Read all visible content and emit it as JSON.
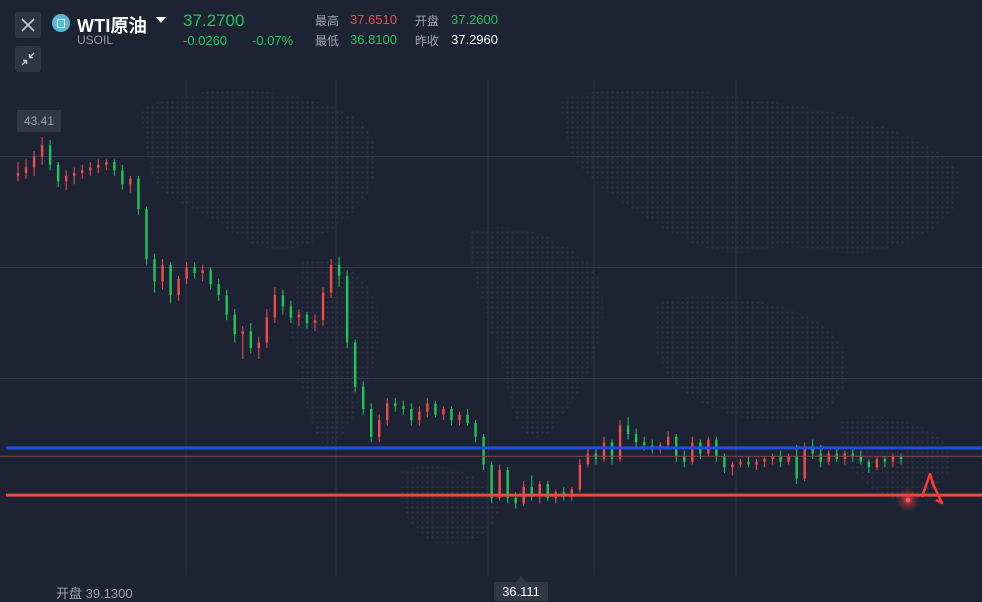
{
  "header": {
    "symbol_name": "WTI原油",
    "symbol_code": "USOIL",
    "last_price": "37.2700",
    "change": "-0.0260",
    "change_pct": "-0.07%",
    "stats": {
      "high_label": "最高",
      "high_value": "37.6510",
      "open_label": "开盘",
      "open_value": "37.2600",
      "low_label": "最低",
      "low_value": "36.8100",
      "prev_close_label": "昨收",
      "prev_close_value": "37.2960"
    }
  },
  "toolbar": {
    "close_icon": "close-icon",
    "collapse_icon": "collapse-icon"
  },
  "footer": {
    "open_text": "开盘 39.1300"
  },
  "colors": {
    "up": "#ee4e4e",
    "down": "#21c55d",
    "background": "#1d2332",
    "blue_line": "#1e4fe0",
    "red_line": "#e0503c"
  },
  "chart_data": {
    "type": "candlestick",
    "y_axis_top_label": "43.41",
    "low_marker_label": "36.111",
    "grid": true,
    "horizontal_lines": [
      {
        "name": "",
        "color": "#1e4fe0",
        "value": 37.2
      },
      {
        "name": "",
        "color": "#e0503c",
        "value": 36.35
      }
    ],
    "last_price_line": 37.05,
    "ylim": [
      35.0,
      43.9
    ],
    "candles": [
      [
        42.1,
        42.35,
        42.0,
        42.15
      ],
      [
        42.15,
        42.4,
        42.05,
        42.25
      ],
      [
        42.25,
        42.55,
        42.1,
        42.45
      ],
      [
        42.45,
        42.8,
        42.3,
        42.65
      ],
      [
        42.65,
        42.75,
        42.2,
        42.3
      ],
      [
        42.3,
        42.35,
        41.9,
        42.0
      ],
      [
        42.0,
        42.2,
        41.85,
        42.1
      ],
      [
        42.1,
        42.25,
        41.95,
        42.15
      ],
      [
        42.15,
        42.3,
        42.05,
        42.2
      ],
      [
        42.2,
        42.35,
        42.1,
        42.25
      ],
      [
        42.25,
        42.4,
        42.15,
        42.3
      ],
      [
        42.3,
        42.4,
        42.2,
        42.35
      ],
      [
        42.35,
        42.4,
        42.1,
        42.2
      ],
      [
        42.2,
        42.3,
        41.85,
        41.95
      ],
      [
        41.95,
        42.1,
        41.8,
        42.05
      ],
      [
        42.05,
        42.1,
        41.4,
        41.5
      ],
      [
        41.5,
        41.55,
        40.5,
        40.6
      ],
      [
        40.6,
        40.7,
        40.0,
        40.2
      ],
      [
        40.2,
        40.6,
        40.05,
        40.5
      ],
      [
        40.5,
        40.55,
        39.8,
        39.95
      ],
      [
        39.95,
        40.3,
        39.85,
        40.25
      ],
      [
        40.25,
        40.55,
        40.15,
        40.45
      ],
      [
        40.45,
        40.55,
        40.25,
        40.35
      ],
      [
        40.35,
        40.5,
        40.2,
        40.4
      ],
      [
        40.4,
        40.45,
        40.05,
        40.15
      ],
      [
        40.15,
        40.25,
        39.85,
        39.95
      ],
      [
        39.95,
        40.05,
        39.5,
        39.6
      ],
      [
        39.6,
        39.7,
        39.1,
        39.25
      ],
      [
        39.25,
        39.4,
        38.8,
        39.3
      ],
      [
        39.3,
        39.45,
        38.9,
        39.0
      ],
      [
        39.0,
        39.2,
        38.8,
        39.1
      ],
      [
        39.1,
        39.7,
        39.0,
        39.55
      ],
      [
        39.55,
        40.1,
        39.45,
        39.95
      ],
      [
        39.95,
        40.05,
        39.6,
        39.75
      ],
      [
        39.75,
        39.85,
        39.45,
        39.55
      ],
      [
        39.55,
        39.7,
        39.4,
        39.6
      ],
      [
        39.6,
        39.65,
        39.35,
        39.45
      ],
      [
        39.45,
        39.6,
        39.3,
        39.5
      ],
      [
        39.5,
        40.1,
        39.4,
        40.0
      ],
      [
        40.0,
        40.6,
        39.9,
        40.5
      ],
      [
        40.5,
        40.65,
        40.1,
        40.3
      ],
      [
        40.3,
        40.4,
        39.0,
        39.1
      ],
      [
        39.1,
        39.15,
        38.2,
        38.3
      ],
      [
        38.3,
        38.4,
        37.8,
        37.9
      ],
      [
        37.9,
        38.0,
        37.3,
        37.4
      ],
      [
        37.4,
        37.8,
        37.3,
        37.7
      ],
      [
        37.7,
        38.1,
        37.6,
        38.0
      ],
      [
        38.0,
        38.1,
        37.85,
        37.95
      ],
      [
        37.95,
        38.05,
        37.8,
        37.9
      ],
      [
        37.9,
        38.0,
        37.6,
        37.7
      ],
      [
        37.7,
        37.95,
        37.6,
        37.85
      ],
      [
        37.85,
        38.1,
        37.75,
        38.0
      ],
      [
        38.0,
        38.05,
        37.75,
        37.8
      ],
      [
        37.8,
        37.95,
        37.7,
        37.9
      ],
      [
        37.9,
        37.95,
        37.6,
        37.7
      ],
      [
        37.7,
        37.85,
        37.6,
        37.8
      ],
      [
        37.8,
        37.9,
        37.6,
        37.65
      ],
      [
        37.65,
        37.7,
        37.3,
        37.4
      ],
      [
        37.4,
        37.45,
        36.8,
        36.9
      ],
      [
        36.9,
        36.95,
        36.2,
        36.3
      ],
      [
        36.3,
        36.9,
        36.25,
        36.8
      ],
      [
        36.8,
        36.85,
        36.2,
        36.3
      ],
      [
        36.3,
        36.4,
        36.11,
        36.2
      ],
      [
        36.2,
        36.6,
        36.15,
        36.5
      ],
      [
        36.5,
        36.7,
        36.25,
        36.35
      ],
      [
        36.35,
        36.6,
        36.2,
        36.55
      ],
      [
        36.55,
        36.6,
        36.25,
        36.3
      ],
      [
        36.3,
        36.45,
        36.2,
        36.4
      ],
      [
        36.4,
        36.5,
        36.25,
        36.35
      ],
      [
        36.35,
        36.5,
        36.25,
        36.45
      ],
      [
        36.45,
        37.0,
        36.4,
        36.9
      ],
      [
        36.9,
        37.2,
        36.85,
        37.1
      ],
      [
        37.1,
        37.2,
        36.9,
        37.0
      ],
      [
        37.0,
        37.4,
        36.95,
        37.3
      ],
      [
        37.3,
        37.35,
        36.9,
        37.0
      ],
      [
        37.0,
        37.7,
        36.95,
        37.6
      ],
      [
        37.6,
        37.75,
        37.35,
        37.45
      ],
      [
        37.45,
        37.55,
        37.2,
        37.3
      ],
      [
        37.3,
        37.4,
        37.15,
        37.25
      ],
      [
        37.25,
        37.35,
        37.1,
        37.2
      ],
      [
        37.2,
        37.3,
        37.1,
        37.25
      ],
      [
        37.25,
        37.5,
        37.2,
        37.4
      ],
      [
        37.4,
        37.45,
        36.95,
        37.05
      ],
      [
        37.05,
        37.15,
        36.85,
        36.95
      ],
      [
        36.95,
        37.4,
        36.9,
        37.3
      ],
      [
        37.3,
        37.35,
        37.0,
        37.1
      ],
      [
        37.1,
        37.4,
        37.05,
        37.35
      ],
      [
        37.35,
        37.4,
        36.95,
        37.05
      ],
      [
        37.05,
        37.1,
        36.75,
        36.85
      ],
      [
        36.85,
        36.95,
        36.7,
        36.9
      ],
      [
        36.9,
        37.0,
        36.85,
        36.95
      ],
      [
        36.95,
        37.05,
        36.85,
        36.9
      ],
      [
        36.9,
        37.0,
        36.8,
        36.95
      ],
      [
        36.95,
        37.05,
        36.85,
        37.0
      ],
      [
        37.0,
        37.1,
        36.9,
        37.05
      ],
      [
        37.05,
        37.15,
        36.85,
        36.95
      ],
      [
        36.95,
        37.1,
        36.9,
        37.05
      ],
      [
        37.05,
        37.25,
        36.55,
        36.65
      ],
      [
        36.65,
        37.3,
        36.6,
        37.2
      ],
      [
        37.2,
        37.35,
        37.0,
        37.1
      ],
      [
        37.1,
        37.25,
        36.85,
        36.95
      ],
      [
        36.95,
        37.15,
        36.9,
        37.1
      ],
      [
        37.1,
        37.2,
        36.95,
        37.0
      ],
      [
        37.0,
        37.15,
        36.9,
        37.1
      ],
      [
        37.1,
        37.2,
        36.95,
        37.05
      ],
      [
        37.05,
        37.15,
        36.9,
        36.95
      ],
      [
        36.95,
        37.0,
        36.75,
        36.85
      ],
      [
        36.85,
        37.05,
        36.8,
        37.0
      ],
      [
        37.0,
        37.05,
        36.85,
        36.95
      ],
      [
        36.95,
        37.1,
        36.85,
        37.05
      ],
      [
        37.05,
        37.1,
        36.9,
        37.0
      ]
    ]
  }
}
